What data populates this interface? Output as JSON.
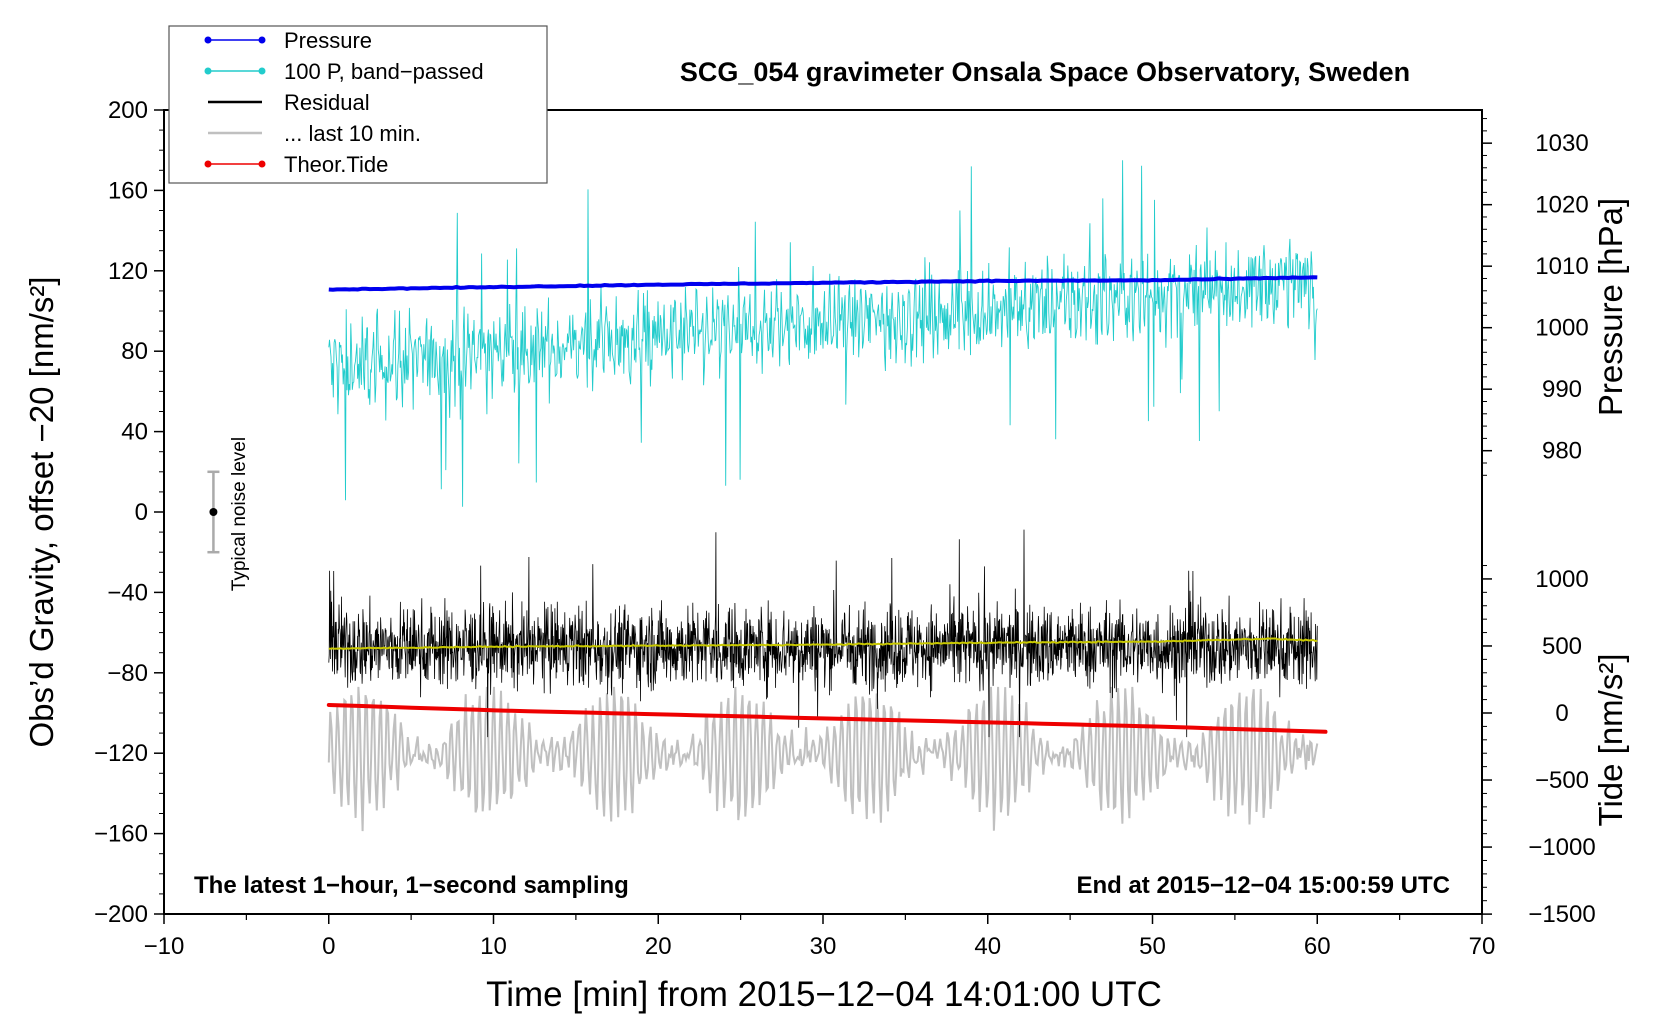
{
  "chart_data": {
    "type": "line",
    "title": "SCG_054 gravimeter Onsala Space Observatory, Sweden",
    "xlabel": "Time [min] from 2015−12−04 14:01:00 UTC",
    "ylabel_left": "Obs’d Gravity, offset −20 [nm/s²]",
    "ylabel_right_top": "Pressure [hPa]",
    "ylabel_right_bottom": "Tide [nm/s²]",
    "xlim": [
      -10,
      70
    ],
    "ylim_left": [
      -200,
      200
    ],
    "x_ticks": [
      -10,
      0,
      10,
      20,
      30,
      40,
      50,
      60,
      70
    ],
    "x_tick_labels": [
      "−10",
      "0",
      "10",
      "20",
      "30",
      "40",
      "50",
      "60",
      "70"
    ],
    "y_ticks_left": [
      -200,
      -160,
      -120,
      -80,
      -40,
      0,
      40,
      80,
      120,
      160,
      200
    ],
    "y_tick_labels_left": [
      "−200",
      "−160",
      "−120",
      "−80",
      "−40",
      "0",
      "40",
      "80",
      "120",
      "160",
      "200"
    ],
    "pressure_axis": {
      "ticks": [
        980,
        990,
        1000,
        1010,
        1020,
        1030
      ],
      "tick_labels": [
        "980",
        "990",
        "1000",
        "1010",
        "1020",
        "1030"
      ],
      "map_left_units": {
        "at_980": 30.5,
        "per_hPa": 3.06
      }
    },
    "tide_axis": {
      "ticks": [
        -1500,
        -1000,
        -500,
        0,
        500,
        1000
      ],
      "tick_labels": [
        "−1500",
        "−1000",
        "−500",
        "0",
        "500",
        "1000"
      ],
      "map_left_units": {
        "at_0": -100,
        "per_unit": 0.0667
      }
    },
    "legend": {
      "position": "top-left",
      "entries": [
        {
          "label": "Pressure",
          "color": "#0000ee",
          "marker": true
        },
        {
          "label": "100 P, band−passed",
          "color": "#22cccc",
          "marker": true
        },
        {
          "label": "Residual",
          "color": "#000000",
          "marker": false
        },
        {
          "label": "... last 10 min.",
          "color": "#c0c0c0",
          "marker": false
        },
        {
          "label": "Theor.Tide",
          "color": "#ee0000",
          "marker": true
        }
      ]
    },
    "series": [
      {
        "name": "Pressure",
        "axis": "pressure",
        "x": [
          0,
          10,
          20,
          30,
          40,
          50,
          60
        ],
        "values": [
          1006.2,
          1006.6,
          1007.0,
          1007.3,
          1007.6,
          1007.7,
          1008.2
        ]
      },
      {
        "name": "100 P, band−passed",
        "axis": "left",
        "x_range": [
          0,
          60
        ],
        "baseline_start": 72,
        "baseline_end": 115,
        "amplitude": 26,
        "min": 0,
        "max": 175
      },
      {
        "name": "Residual",
        "axis": "left",
        "x_range": [
          0,
          60
        ],
        "center": -67,
        "amplitude": 22,
        "min": -112,
        "max": 0
      },
      {
        "name": "Residual smoothed",
        "axis": "left",
        "x": [
          0,
          10,
          20,
          30,
          40,
          50,
          57,
          60
        ],
        "values": [
          -68,
          -67,
          -66.5,
          -66,
          -65,
          -64.5,
          -63,
          -64
        ]
      },
      {
        "name": "... last 10 min.",
        "axis": "left",
        "x_range": [
          0,
          60
        ],
        "center": -120,
        "amplitude": 30,
        "min": -175,
        "max": -87
      },
      {
        "name": "Theor.Tide",
        "axis": "tide",
        "x": [
          0,
          10,
          20,
          30,
          40,
          50,
          60.5
        ],
        "values": [
          60,
          20,
          -10,
          -40,
          -70,
          -100,
          -140
        ]
      }
    ],
    "noise_bar": {
      "label": "Typical noise level",
      "x": -7,
      "center": 0,
      "low": -20,
      "high": 20
    },
    "annotation_left": "The latest 1−hour, 1−second sampling",
    "annotation_right": "End at 2015−12−04 15:00:59 UTC"
  }
}
